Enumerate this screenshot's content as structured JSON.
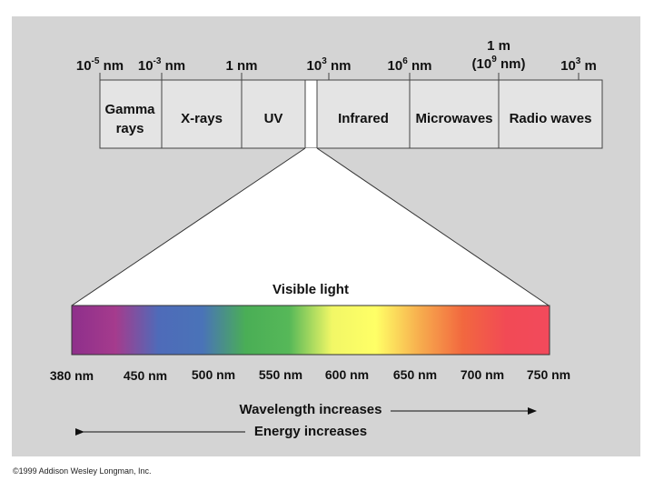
{
  "colors": {
    "panel": "#d4d4d4",
    "band_fill": "#e4e4e4",
    "line": "#444444",
    "visible_gradient": [
      "#8e2f8b",
      "#a53b8d",
      "#4e6bb9",
      "#4a73b8",
      "#4aae56",
      "#56b858",
      "#f2f766",
      "#ffff66",
      "#f7ae4e",
      "#f2683f",
      "#f24a55",
      "#f24a5c"
    ]
  },
  "spectrum_scale": [
    {
      "base": "10",
      "exp": "-5",
      "unit": " nm"
    },
    {
      "base": "10",
      "exp": "-3",
      "unit": " nm"
    },
    {
      "base": "1 nm",
      "exp": "",
      "unit": ""
    },
    {
      "base": "10",
      "exp": "3",
      "unit": " nm"
    },
    {
      "base": "10",
      "exp": "6",
      "unit": " nm"
    },
    {
      "base": "(10",
      "exp": "9",
      "unit": " nm)",
      "above": "1 m"
    },
    {
      "base": "10",
      "exp": "3",
      "unit": " m"
    }
  ],
  "bands": [
    {
      "line1": "Gamma",
      "line2": "rays"
    },
    {
      "line1": "X-rays",
      "line2": ""
    },
    {
      "line1": "UV",
      "line2": ""
    },
    {
      "line1": "",
      "line2": ""
    },
    {
      "line1": "Infrared",
      "line2": ""
    },
    {
      "line1": "Microwaves",
      "line2": ""
    },
    {
      "line1": "Radio waves",
      "line2": ""
    }
  ],
  "visible_title": "Visible light",
  "visible_ticks": [
    "380 nm",
    "450 nm",
    "500 nm",
    "550 nm",
    "600 nm",
    "650 nm",
    "700 nm",
    "750 nm"
  ],
  "arrows": {
    "wavelength": "Wavelength increases",
    "energy": "Energy increases"
  },
  "copyright": "©1999 Addison Wesley Longman, Inc."
}
